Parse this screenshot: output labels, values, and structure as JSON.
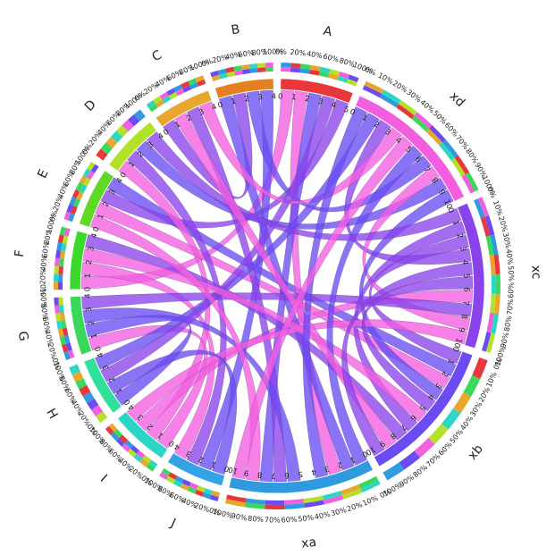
{
  "chart_data": {
    "type": "chord",
    "title": "",
    "segments": [
      {
        "name": "A",
        "total": 5,
        "color": "#e8363a"
      },
      {
        "name": "xd",
        "total": 10,
        "color": "#f35ee0"
      },
      {
        "name": "xc",
        "total": 10,
        "color": "#8a43ea"
      },
      {
        "name": "xb",
        "total": 10,
        "color": "#6a4cf2"
      },
      {
        "name": "xa",
        "total": 10,
        "color": "#2f9ae0"
      },
      {
        "name": "J",
        "total": 4,
        "color": "#33a3e6"
      },
      {
        "name": "I",
        "total": 4,
        "color": "#2bd7c4"
      },
      {
        "name": "H",
        "total": 4,
        "color": "#2fe09a"
      },
      {
        "name": "G",
        "total": 4,
        "color": "#3ad85a"
      },
      {
        "name": "F",
        "total": 4,
        "color": "#3dd82e"
      },
      {
        "name": "E",
        "total": 4,
        "color": "#5fd826"
      },
      {
        "name": "D",
        "total": 4,
        "color": "#b3e12a"
      },
      {
        "name": "C",
        "total": 4,
        "color": "#e9a62c"
      },
      {
        "name": "B",
        "total": 4,
        "color": "#e67e22"
      }
    ],
    "ribbon_colors": [
      "#f35ee0",
      "#6a4cf2",
      "#8a43ea"
    ],
    "pct_ticks": [
      "0%",
      "10%",
      "20%",
      "30%",
      "40%",
      "50%",
      "60%",
      "70%",
      "80%",
      "90%",
      "100%"
    ],
    "pct_ticks_small": [
      "0%",
      "20%",
      "40%",
      "60%",
      "80%",
      "100%"
    ],
    "outer_band_palette": [
      "#f35ee0",
      "#6a4cf2",
      "#2f9ae0",
      "#e8363a",
      "#3ad85a",
      "#e9a62c",
      "#2bd7c4",
      "#b3e12a"
    ]
  }
}
